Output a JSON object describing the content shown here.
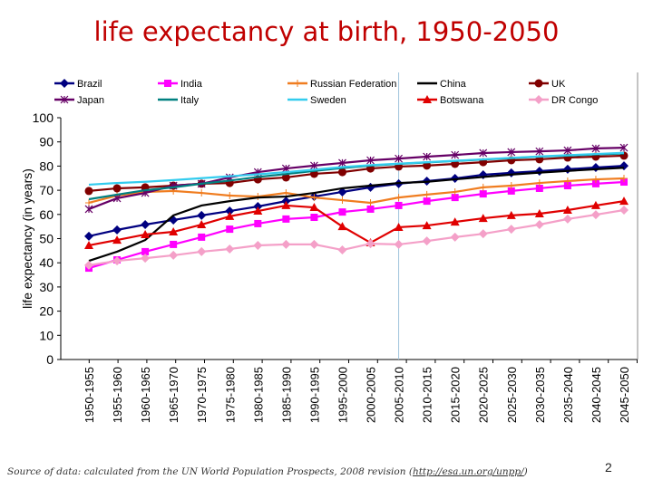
{
  "title": "life expectancy at birth, 1950-2050",
  "source": {
    "text": "Source of data: calculated from the UN World Population Prospects, 2008 revision (",
    "link": "http://esa.un.org/unpp/",
    "suffix": ")"
  },
  "page_number": "2",
  "chart_data": {
    "type": "line",
    "title": "",
    "xlabel": "",
    "ylabel": "life expectancy (in years)",
    "ylim": [
      0,
      100
    ],
    "yticks": [
      0,
      10,
      20,
      30,
      40,
      50,
      60,
      70,
      80,
      90,
      100
    ],
    "grid": false,
    "legend": "top",
    "highlight_category": "2005-2010",
    "highlight_color": "#9ec3dc",
    "categories": [
      "1950-1955",
      "1955-1960",
      "1960-1965",
      "1965-1970",
      "1970-1975",
      "1975-1980",
      "1980-1985",
      "1985-1990",
      "1990-1995",
      "1995-2000",
      "2000-2005",
      "2005-2010",
      "2010-2015",
      "2015-2020",
      "2020-2025",
      "2025-2030",
      "2030-2035",
      "2035-2040",
      "2040-2045",
      "2045-2050"
    ],
    "series": [
      {
        "name": "Brazil",
        "color": "#000080",
        "marker": "diamond",
        "values": [
          51,
          53.6,
          55.8,
          57.7,
          59.6,
          61.4,
          63.3,
          65.5,
          67.4,
          69.3,
          71.2,
          72.7,
          73.8,
          74.9,
          76.4,
          77.2,
          77.9,
          78.7,
          79.4,
          80.1
        ]
      },
      {
        "name": "India",
        "color": "#ff00ff",
        "marker": "square",
        "values": [
          37.8,
          41.2,
          44.6,
          47.6,
          50.6,
          53.9,
          56.2,
          58.1,
          58.8,
          61,
          62.2,
          63.7,
          65.5,
          67,
          68.5,
          69.7,
          70.8,
          71.9,
          72.7,
          73.4
        ]
      },
      {
        "name": "Russian Federation",
        "color": "#f07d20",
        "marker": "star",
        "values": [
          64.8,
          67.8,
          69.3,
          69.7,
          68.9,
          67.8,
          67.4,
          68.9,
          67,
          65.9,
          64.8,
          67,
          68.2,
          69.3,
          71.2,
          71.9,
          73,
          73.8,
          74.5,
          74.9
        ]
      },
      {
        "name": "China",
        "color": "#000000",
        "marker": "none",
        "values": [
          40.8,
          44.6,
          49.4,
          59.6,
          63.7,
          65.5,
          67,
          67.4,
          68.9,
          70.8,
          71.9,
          73,
          73.5,
          74.5,
          75.5,
          76.5,
          77.3,
          78,
          78.7,
          79.3
        ]
      },
      {
        "name": "UK",
        "color": "#800000",
        "marker": "circle",
        "values": [
          69.7,
          70.8,
          71.2,
          71.9,
          72.7,
          73,
          74.5,
          75.3,
          76.8,
          77.5,
          79,
          79.8,
          80.2,
          80.9,
          81.6,
          82.4,
          82.8,
          83.5,
          83.9,
          84.3
        ]
      },
      {
        "name": "Japan",
        "color": "#660066",
        "marker": "asterisk",
        "values": [
          62.2,
          66.7,
          68.9,
          71.9,
          72.7,
          75.3,
          77.5,
          79,
          80.2,
          81.3,
          82.4,
          83.1,
          83.9,
          84.6,
          85.4,
          85.8,
          86.1,
          86.5,
          87.3,
          87.6
        ]
      },
      {
        "name": "Italy",
        "color": "#008080",
        "marker": "none",
        "values": [
          66.3,
          68.2,
          70,
          71.2,
          72.7,
          74,
          75.5,
          76.7,
          78,
          79.2,
          80.2,
          80.9,
          81.5,
          82.1,
          82.7,
          83.3,
          83.9,
          84.3,
          84.8,
          85.2
        ]
      },
      {
        "name": "Sweden",
        "color": "#33ccee",
        "marker": "none",
        "values": [
          72.3,
          73,
          73.5,
          74.2,
          75,
          75.8,
          76.6,
          77.5,
          78.5,
          79.6,
          80.4,
          81,
          81.6,
          82.2,
          82.8,
          83.4,
          84,
          84.5,
          85,
          85.5
        ]
      },
      {
        "name": "Botswana",
        "color": "#e00000",
        "marker": "triangle",
        "values": [
          47.2,
          49.4,
          51.7,
          52.8,
          55.8,
          59.2,
          61.4,
          63.7,
          62.9,
          55,
          48.3,
          54.7,
          55.4,
          56.9,
          58.4,
          59.6,
          60.3,
          61.8,
          63.7,
          65.5
        ]
      },
      {
        "name": "DR Congo",
        "color": "#f4a0c8",
        "marker": "diamond",
        "values": [
          39,
          40.8,
          41.9,
          43.1,
          44.6,
          45.7,
          47.2,
          47.6,
          47.6,
          45.3,
          47.9,
          47.6,
          49,
          50.6,
          52,
          53.9,
          55.8,
          58.1,
          59.9,
          61.8
        ]
      }
    ]
  }
}
